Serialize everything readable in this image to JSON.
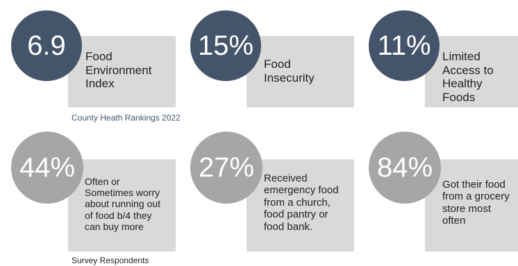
{
  "colors": {
    "circle_dark": "#44546a",
    "circle_grey": "#a6a6a6",
    "box": "#d9d9d9",
    "source_top": "#44546a",
    "source_bottom": "#222222"
  },
  "top_stats": [
    {
      "value": "6.9",
      "label": "Food\nEnvironment\nIndex"
    },
    {
      "value": "15%",
      "label": "Food\nInsecurity"
    },
    {
      "value": "11%",
      "label": "Limited\nAccess to\nHealthy Foods"
    }
  ],
  "top_source": "County Heath Rankings 2022",
  "bottom_stats": [
    {
      "value": "44%",
      "label": "Often or\nSometimes worry\nabout running out\nof food b/4 they\ncan buy more"
    },
    {
      "value": "27%",
      "label": "Received\nemergency food\nfrom a church,\nfood pantry or\nfood bank."
    },
    {
      "value": "84%",
      "label": "Got their food\nfrom a grocery\nstore most\noften"
    }
  ],
  "bottom_source": "Survey Respondents"
}
